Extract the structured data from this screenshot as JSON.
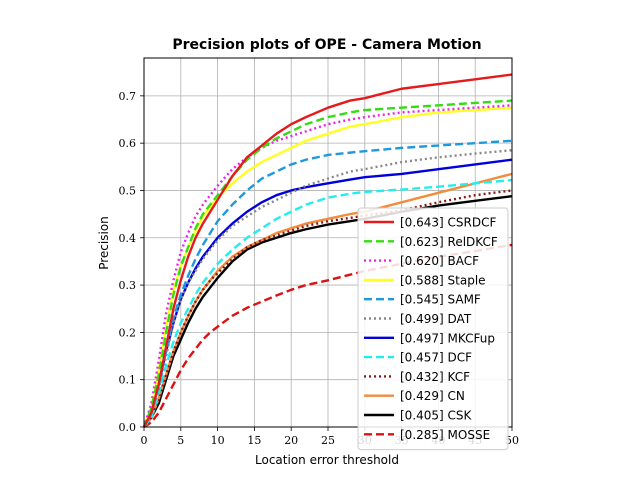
{
  "chart_data": {
    "type": "line",
    "title": "Precision plots of OPE - Camera Motion",
    "xlabel": "Location error threshold",
    "ylabel": "Precision",
    "xlim": [
      0,
      50
    ],
    "ylim": [
      0,
      0.78
    ],
    "xticks": [
      "0",
      "5",
      "10",
      "15",
      "20",
      "25",
      "30",
      "35",
      "40",
      "45",
      "50"
    ],
    "yticks": [
      "0.0",
      "0.1",
      "0.2",
      "0.3",
      "0.4",
      "0.5",
      "0.6",
      "0.7"
    ],
    "grid": true,
    "legend_position": "lower-right",
    "x": [
      0,
      1,
      2,
      3,
      4,
      5,
      6,
      7,
      8,
      9,
      10,
      12,
      14,
      16,
      18,
      20,
      22,
      25,
      28,
      30,
      35,
      40,
      45,
      50
    ],
    "series": [
      {
        "name": "CSRDCF",
        "label": "[0.643] CSRDCF",
        "color": "#e41a1c",
        "dash": "solid",
        "values": [
          0.0,
          0.03,
          0.09,
          0.17,
          0.25,
          0.31,
          0.36,
          0.4,
          0.43,
          0.455,
          0.48,
          0.53,
          0.57,
          0.595,
          0.62,
          0.64,
          0.655,
          0.675,
          0.69,
          0.695,
          0.715,
          0.725,
          0.735,
          0.745
        ]
      },
      {
        "name": "RelDKCF",
        "label": "[0.623] RelDKCF",
        "color": "#33dd11",
        "dash": "dash",
        "values": [
          0.0,
          0.04,
          0.11,
          0.2,
          0.28,
          0.34,
          0.38,
          0.42,
          0.45,
          0.47,
          0.49,
          0.53,
          0.565,
          0.59,
          0.61,
          0.625,
          0.64,
          0.655,
          0.665,
          0.67,
          0.675,
          0.68,
          0.685,
          0.69
        ]
      },
      {
        "name": "BACF",
        "label": "[0.620] BACF",
        "color": "#ee22ee",
        "dash": "dot",
        "values": [
          0.0,
          0.05,
          0.14,
          0.24,
          0.31,
          0.37,
          0.41,
          0.445,
          0.47,
          0.49,
          0.51,
          0.545,
          0.57,
          0.59,
          0.605,
          0.615,
          0.625,
          0.64,
          0.65,
          0.655,
          0.665,
          0.67,
          0.675,
          0.68
        ]
      },
      {
        "name": "Staple",
        "label": "[0.588] Staple",
        "color": "#ffff22",
        "dash": "solid",
        "values": [
          0.0,
          0.04,
          0.12,
          0.21,
          0.29,
          0.34,
          0.38,
          0.415,
          0.445,
          0.465,
          0.485,
          0.515,
          0.54,
          0.56,
          0.575,
          0.59,
          0.605,
          0.62,
          0.635,
          0.64,
          0.655,
          0.665,
          0.67,
          0.675
        ]
      },
      {
        "name": "SAMF",
        "label": "[0.545] SAMF",
        "color": "#1f99dd",
        "dash": "dash",
        "values": [
          0.0,
          0.03,
          0.09,
          0.16,
          0.23,
          0.28,
          0.32,
          0.355,
          0.385,
          0.41,
          0.435,
          0.47,
          0.5,
          0.525,
          0.54,
          0.555,
          0.565,
          0.575,
          0.58,
          0.583,
          0.59,
          0.595,
          0.6,
          0.605
        ]
      },
      {
        "name": "DAT",
        "label": "[0.499] DAT",
        "color": "#888888",
        "dash": "dot",
        "values": [
          0.0,
          0.03,
          0.08,
          0.15,
          0.22,
          0.27,
          0.305,
          0.33,
          0.355,
          0.375,
          0.395,
          0.425,
          0.445,
          0.465,
          0.48,
          0.495,
          0.51,
          0.525,
          0.54,
          0.545,
          0.56,
          0.57,
          0.578,
          0.585
        ]
      },
      {
        "name": "MKCFup",
        "label": "[0.497] MKCFup",
        "color": "#0000dd",
        "dash": "solid",
        "values": [
          0.0,
          0.03,
          0.09,
          0.16,
          0.22,
          0.27,
          0.305,
          0.335,
          0.36,
          0.38,
          0.4,
          0.43,
          0.455,
          0.475,
          0.49,
          0.5,
          0.507,
          0.515,
          0.523,
          0.528,
          0.535,
          0.545,
          0.555,
          0.565
        ]
      },
      {
        "name": "DCF",
        "label": "[0.457] DCF",
        "color": "#22eeee",
        "dash": "dash",
        "values": [
          0.0,
          0.02,
          0.07,
          0.13,
          0.18,
          0.22,
          0.25,
          0.28,
          0.305,
          0.325,
          0.345,
          0.375,
          0.4,
          0.42,
          0.44,
          0.455,
          0.47,
          0.485,
          0.493,
          0.497,
          0.502,
          0.508,
          0.515,
          0.522
        ]
      },
      {
        "name": "KCF",
        "label": "[0.432] KCF",
        "color": "#8b1a1a",
        "dash": "dot",
        "values": [
          0.0,
          0.02,
          0.06,
          0.11,
          0.16,
          0.2,
          0.235,
          0.265,
          0.29,
          0.31,
          0.325,
          0.355,
          0.38,
          0.395,
          0.405,
          0.415,
          0.425,
          0.435,
          0.442,
          0.447,
          0.458,
          0.475,
          0.49,
          0.5
        ]
      },
      {
        "name": "CN",
        "label": "[0.429] CN",
        "color": "#f28c3c",
        "dash": "solid",
        "values": [
          0.0,
          0.02,
          0.06,
          0.11,
          0.16,
          0.2,
          0.235,
          0.265,
          0.29,
          0.31,
          0.33,
          0.36,
          0.38,
          0.395,
          0.41,
          0.42,
          0.43,
          0.44,
          0.45,
          0.455,
          0.475,
          0.495,
          0.515,
          0.535
        ]
      },
      {
        "name": "CSK",
        "label": "[0.405] CSK",
        "color": "#000000",
        "dash": "solid",
        "values": [
          0.0,
          0.02,
          0.05,
          0.1,
          0.15,
          0.185,
          0.22,
          0.25,
          0.275,
          0.295,
          0.315,
          0.35,
          0.375,
          0.39,
          0.4,
          0.41,
          0.418,
          0.428,
          0.435,
          0.44,
          0.455,
          0.468,
          0.478,
          0.488
        ]
      },
      {
        "name": "MOSSE",
        "label": "[0.285] MOSSE",
        "color": "#dd1111",
        "dash": "dash",
        "values": [
          0.0,
          0.01,
          0.03,
          0.06,
          0.09,
          0.12,
          0.145,
          0.165,
          0.185,
          0.2,
          0.212,
          0.235,
          0.252,
          0.265,
          0.278,
          0.29,
          0.3,
          0.31,
          0.322,
          0.33,
          0.345,
          0.36,
          0.372,
          0.385
        ]
      }
    ]
  }
}
